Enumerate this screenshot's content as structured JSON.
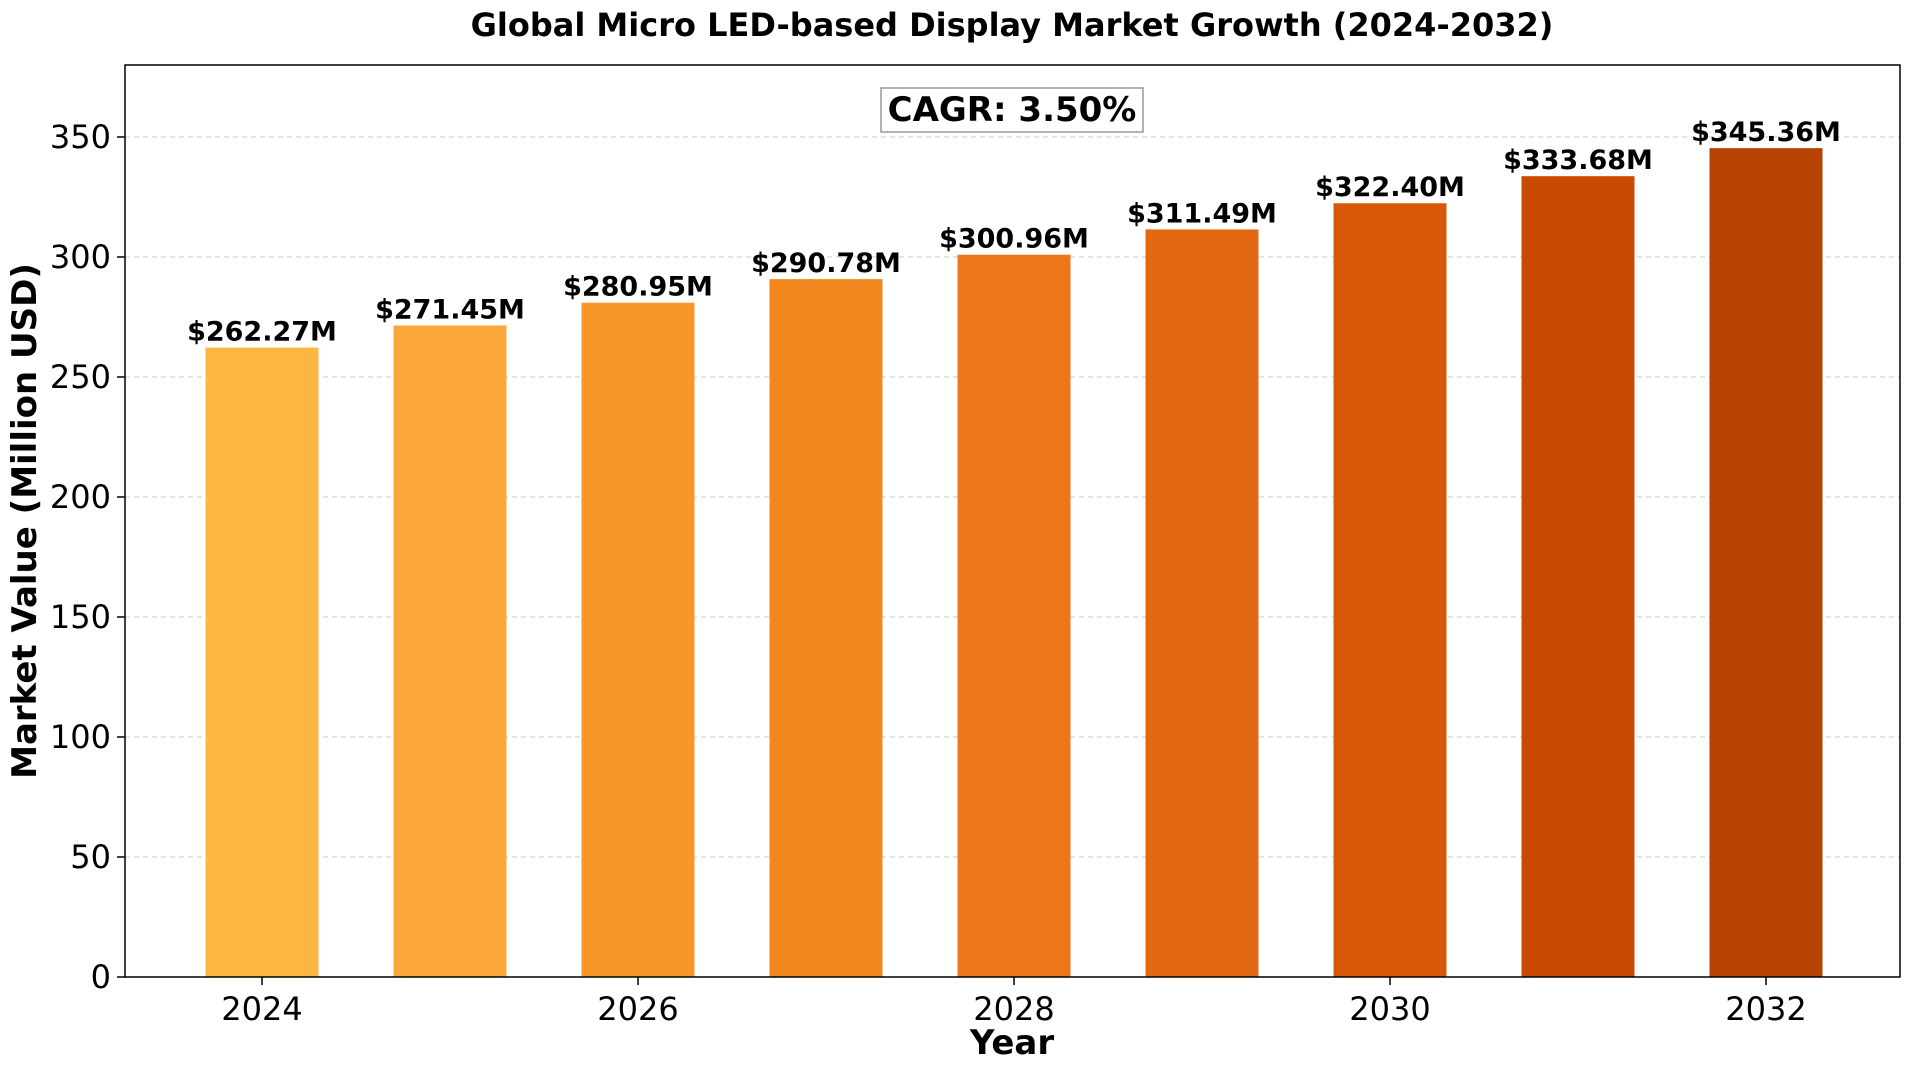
{
  "chart_data": {
    "type": "bar",
    "title": "Global Micro LED-based Display Market Growth (2024-2032)",
    "xlabel": "Year",
    "ylabel": "Market Value (Million USD)",
    "categories": [
      "2024",
      "2025",
      "2026",
      "2027",
      "2028",
      "2029",
      "2030",
      "2031",
      "2032"
    ],
    "values": [
      262.27,
      271.45,
      280.95,
      290.78,
      300.96,
      311.49,
      322.4,
      333.68,
      345.36
    ],
    "value_labels": [
      "$262.27M",
      "$271.45M",
      "$280.95M",
      "$290.78M",
      "$300.96M",
      "$311.49M",
      "$322.40M",
      "$333.68M",
      "$345.36M"
    ],
    "bar_colors": [
      "#fdb642",
      "#fca73a",
      "#f99628",
      "#f28720",
      "#ed761b",
      "#e46712",
      "#d85809",
      "#c94a02",
      "#b64204"
    ],
    "ylim": [
      0,
      380
    ],
    "yticks": [
      0,
      50,
      100,
      150,
      200,
      250,
      300,
      350
    ],
    "xtick_labels": [
      "2024",
      "2026",
      "2028",
      "2030",
      "2032"
    ],
    "xtick_positions": [
      2024,
      2026,
      2028,
      2030,
      2032
    ],
    "grid": "y-dashed",
    "legend": "none",
    "annotation": "CAGR: 3.50%"
  }
}
